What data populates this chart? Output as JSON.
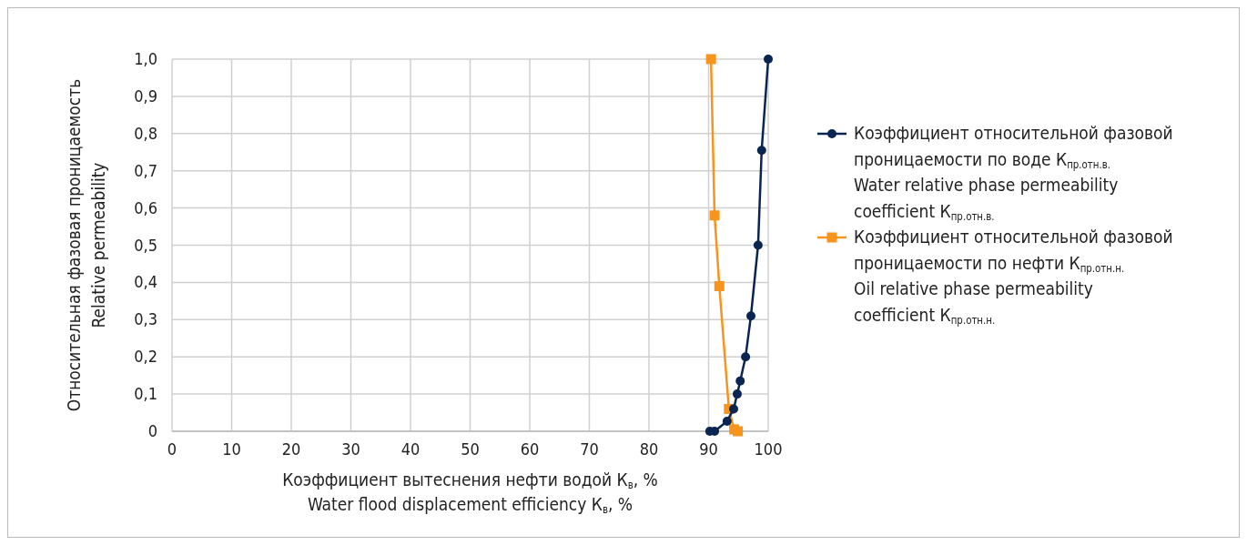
{
  "chart_data": {
    "type": "line",
    "xlabel": "Коэффициент вытеснения нефти водой К$_{в}$, %\nWater flood displacement efficiency К$_{в}$, %",
    "ylabel": "Относительная фазовая проницаемость\nRelative permeability",
    "xlim": [
      0,
      100
    ],
    "xticks": [
      0,
      10,
      20,
      30,
      40,
      50,
      60,
      70,
      80,
      90,
      100
    ],
    "ylim": [
      0,
      1
    ],
    "yticks": [
      {
        "value": 0,
        "label": "0"
      },
      {
        "value": 0.1,
        "label": "0,1"
      },
      {
        "value": 0.2,
        "label": "0,2"
      },
      {
        "value": 0.3,
        "label": "0,3"
      },
      {
        "value": 0.4,
        "label": "0,4"
      },
      {
        "value": 0.5,
        "label": "0,5"
      },
      {
        "value": 0.6,
        "label": "0,6"
      },
      {
        "value": 0.7,
        "label": "0,7"
      },
      {
        "value": 0.8,
        "label": "0,8"
      },
      {
        "value": 0.9,
        "label": "0,9"
      },
      {
        "value": 1,
        "label": "1,0"
      }
    ],
    "grid": true,
    "legend": "right",
    "series": [
      {
        "name": "Коэффициент относительной фазовой проницаемости по воде К$_{пр.отн.в.}$\nWater relative phase permeability coefficient К$_{пр.отн.в.}$",
        "color": "#0b2552",
        "marker": "circle",
        "x": [
          90.2,
          91.0,
          93.1,
          94.2,
          94.8,
          95.3,
          96.2,
          97.1,
          98.3,
          98.9,
          100
        ],
        "values": [
          0,
          0,
          0.027,
          0.06,
          0.1,
          0.135,
          0.2,
          0.31,
          0.5,
          0.755,
          1.0
        ]
      },
      {
        "name": "Коэффициент относительной фазовой проницаемости по нефти К$_{пр.отн.н.}$\nOil relative phase permeability coefficient К$_{пр.отн.н.}$",
        "color": "#f7941d",
        "marker": "square",
        "x": [
          90.4,
          91.0,
          91.8,
          93.4,
          94.3,
          94.9
        ],
        "values": [
          1.0,
          0.58,
          0.39,
          0.06,
          0.005,
          0
        ]
      }
    ]
  }
}
